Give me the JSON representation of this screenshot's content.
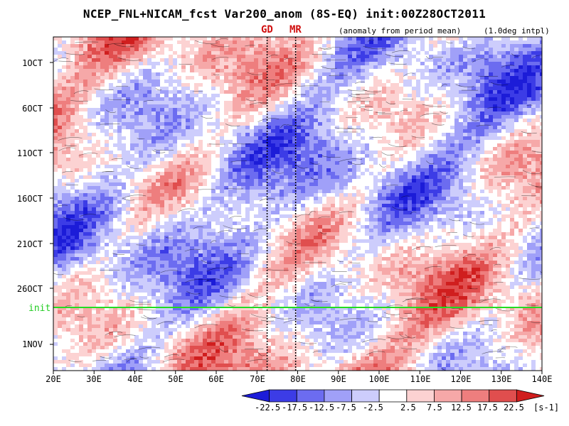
{
  "chart_data": {
    "type": "heatmap",
    "title": "NCEP_FNL+NICAM_fcst Var200_anom (8S-EQ) init:00Z28OCT2011",
    "subtitle_left": "(anomaly from period mean)",
    "subtitle_right": "(1.0deg intpl)",
    "x_axis": {
      "ticks": [
        "20E",
        "30E",
        "40E",
        "50E",
        "60E",
        "70E",
        "80E",
        "90E",
        "100E",
        "110E",
        "120E",
        "130E",
        "140E"
      ],
      "range": [
        20,
        140
      ]
    },
    "y_axis": {
      "ticks": [
        "1OCT",
        "6OCT",
        "11OCT",
        "16OCT",
        "21OCT",
        "26OCT",
        "1NOV"
      ],
      "order": "time increasing downward"
    },
    "init_label": "init",
    "init_line_color": "#22dd22",
    "markers": [
      {
        "label": "GD",
        "lon": 72.5
      },
      {
        "label": "MR",
        "lon": 79.5
      }
    ],
    "colorbar": {
      "labels": [
        "-22.5",
        "-17.5",
        "-12.5",
        "-7.5",
        "-2.5",
        "2.5",
        "7.5",
        "12.5",
        "17.5",
        "22.5"
      ],
      "colors": [
        "#1c1cd8",
        "#3c3ce6",
        "#6c6cf0",
        "#a0a0f8",
        "#cdcdfc",
        "#ffffff",
        "#fcd2d2",
        "#f6a8a8",
        "#ee7e7e",
        "#e04e4e",
        "#d01e1e"
      ],
      "unit": "[s-1]"
    },
    "colors": {
      "marker": "#d01010",
      "init": "#22cc22"
    }
  }
}
